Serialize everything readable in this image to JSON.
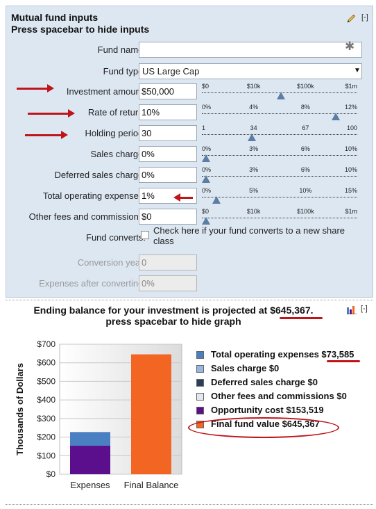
{
  "panel": {
    "title_line1": "Mutual fund inputs",
    "title_line2": "Press spacebar to hide inputs",
    "collapse": "[-]"
  },
  "fields": {
    "fund_name": {
      "label": "Fund name:",
      "value": ""
    },
    "fund_type": {
      "label": "Fund type:",
      "value": "US Large Cap"
    },
    "investment_amount": {
      "label": "Investment amount:",
      "value": "$50,000",
      "ticks": [
        "$0",
        "$10k",
        "$100k",
        "$1m"
      ],
      "slider_fraction": 0.48
    },
    "rate_of_return": {
      "label": "Rate of return:",
      "value": "10%",
      "ticks": [
        "0%",
        "4%",
        "8%",
        "12%"
      ],
      "slider_fraction": 0.833
    },
    "holding_period": {
      "label": "Holding period:",
      "value": "30",
      "ticks": [
        "1",
        "34",
        "67",
        "100"
      ],
      "slider_fraction": 0.293
    },
    "sales_charge": {
      "label": "Sales charge:",
      "value": "0%",
      "ticks": [
        "0%",
        "3%",
        "6%",
        "10%"
      ],
      "slider_fraction": 0.0
    },
    "deferred_sales_charge": {
      "label": "Deferred sales charge:",
      "value": "0%",
      "ticks": [
        "0%",
        "3%",
        "6%",
        "10%"
      ],
      "slider_fraction": 0.0
    },
    "total_operating_expenses": {
      "label": "Total operating expenses:",
      "value": "1%",
      "ticks": [
        "0%",
        "5%",
        "10%",
        "15%"
      ],
      "slider_fraction": 0.067
    },
    "other_fees": {
      "label": "Other fees and commissions:",
      "value": "$0",
      "ticks": [
        "$0",
        "$10k",
        "$100k",
        "$1m"
      ],
      "slider_fraction": 0.0
    },
    "fund_converts": {
      "label": "Fund converts:",
      "checkbox_text": "Check here if your fund converts to a new share class",
      "checked": false
    },
    "conversion_year": {
      "label": "Conversion year:",
      "value": "0"
    },
    "expenses_after_converting": {
      "label": "Expenses after converting:",
      "value": "0%"
    }
  },
  "result": {
    "headline_pre": "Ending balance for your investment is projected at ",
    "headline_amount": "$645,367",
    "headline_post": ".",
    "headline_line2": "press spacebar to hide graph",
    "collapse": "[-]"
  },
  "legend": [
    {
      "label": "Total operating expenses ",
      "amount": "$73,585",
      "color": "#4a7fc1"
    },
    {
      "label": "Sales charge ",
      "amount": "$0",
      "color": "#9ab7df"
    },
    {
      "label": "Deferred sales charge ",
      "amount": "$0",
      "color": "#2b3e57"
    },
    {
      "label": "Other fees and commissions ",
      "amount": "$0",
      "color": "#e3e8ef"
    },
    {
      "label": "Opportunity cost ",
      "amount": "$153,519",
      "color": "#5b0f8c"
    },
    {
      "label": "Final fund value ",
      "amount": "$645,367",
      "color": "#f26522"
    }
  ],
  "chart_data": {
    "type": "bar",
    "ylabel": "Thousands of Dollars",
    "ylim": [
      0,
      700
    ],
    "yticks": [
      "$0",
      "$100",
      "$200",
      "$300",
      "$400",
      "$500",
      "$600",
      "$700"
    ],
    "categories": [
      "Expenses",
      "Final Balance"
    ],
    "series": [
      {
        "name": "Opportunity cost",
        "values": [
          153.519,
          0
        ],
        "color": "#5b0f8c"
      },
      {
        "name": "Total operating expenses",
        "values": [
          73.585,
          0
        ],
        "color": "#4a7fc1"
      },
      {
        "name": "Final fund value",
        "values": [
          0,
          645.367
        ],
        "color": "#f26522"
      }
    ]
  }
}
